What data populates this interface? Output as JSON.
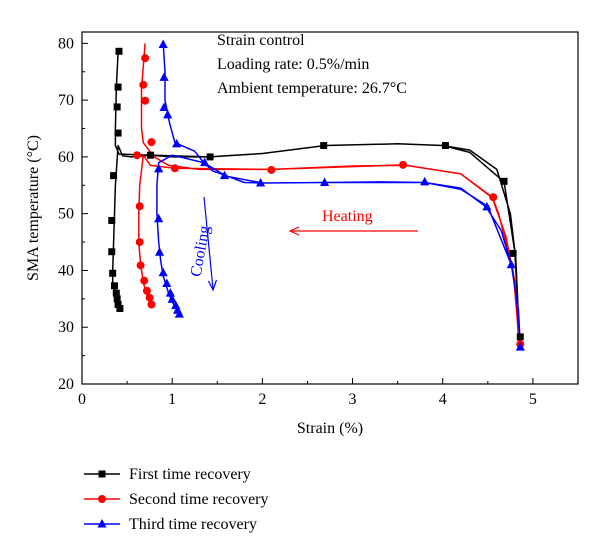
{
  "chart_data": {
    "type": "line",
    "xlabel": "Strain (%)",
    "ylabel": "SMA temperature (°C)",
    "xlim": [
      0,
      5.5
    ],
    "ylim": [
      20,
      82
    ],
    "xticks": [
      0,
      1,
      2,
      3,
      4,
      5
    ],
    "yticks": [
      20,
      30,
      40,
      50,
      60,
      70,
      80
    ],
    "grid": false,
    "legend_position": "bottom",
    "annotations": {
      "info_lines": [
        "Strain control",
        "Loading rate: 0.5%/min",
        "Ambient temperature: 26.7°C"
      ],
      "heating": "Heating",
      "cooling": "Cooling"
    },
    "series": [
      {
        "name": "First time recovery",
        "color": "#000000",
        "marker": "square",
        "line": [
          [
            0.4,
            78.5
          ],
          [
            0.38,
            72
          ],
          [
            0.37,
            65
          ],
          [
            0.37,
            62
          ],
          [
            0.41,
            60.5
          ],
          [
            0.8,
            60.3
          ],
          [
            1.4,
            60.0
          ],
          [
            2.0,
            60.6
          ],
          [
            2.7,
            62.0
          ],
          [
            3.5,
            62.3
          ],
          [
            4.0,
            62.0
          ],
          [
            4.3,
            61.2
          ],
          [
            4.6,
            57.8
          ],
          [
            4.75,
            50
          ],
          [
            4.81,
            42
          ],
          [
            4.85,
            28.2
          ],
          [
            4.8,
            43.2
          ],
          [
            4.68,
            55.6
          ],
          [
            4.3,
            60.8
          ],
          [
            4.0,
            62.0
          ],
          [
            3.5,
            62.3
          ],
          [
            2.7,
            62.0
          ],
          [
            2.0,
            60.6
          ],
          [
            1.42,
            60.0
          ],
          [
            1.0,
            60.0
          ],
          [
            0.76,
            60.3
          ],
          [
            0.55,
            60.0
          ],
          [
            0.45,
            60.2
          ],
          [
            0.4,
            62
          ],
          [
            0.37,
            55
          ],
          [
            0.35,
            45
          ],
          [
            0.34,
            40
          ],
          [
            0.34,
            38
          ],
          [
            0.36,
            36.5
          ],
          [
            0.37,
            35.5
          ],
          [
            0.39,
            34.5
          ],
          [
            0.41,
            33.3
          ]
        ],
        "markers": [
          [
            0.41,
            78.6
          ],
          [
            0.4,
            72.3
          ],
          [
            0.39,
            68.8
          ],
          [
            0.4,
            64.2
          ],
          [
            0.76,
            60.3
          ],
          [
            1.42,
            60.0
          ],
          [
            2.68,
            62.0
          ],
          [
            4.03,
            62.0
          ],
          [
            4.68,
            55.7
          ],
          [
            4.78,
            43.0
          ],
          [
            4.86,
            28.3
          ],
          [
            0.35,
            56.7
          ],
          [
            0.33,
            48.8
          ],
          [
            0.33,
            43.3
          ],
          [
            0.34,
            39.5
          ],
          [
            0.36,
            37.3
          ],
          [
            0.38,
            36.0
          ],
          [
            0.39,
            35.0
          ],
          [
            0.4,
            34.0
          ],
          [
            0.42,
            33.3
          ]
        ]
      },
      {
        "name": "Second time recovery",
        "color": "#ff0000",
        "marker": "circle",
        "line": [
          [
            0.7,
            80.0
          ],
          [
            0.66,
            72
          ],
          [
            0.66,
            65
          ],
          [
            0.68,
            62.5
          ],
          [
            0.8,
            60.0
          ],
          [
            0.96,
            58.5
          ],
          [
            1.3,
            57.8
          ],
          [
            2.1,
            57.8
          ],
          [
            3.0,
            58.4
          ],
          [
            3.6,
            58.5
          ],
          [
            4.2,
            57.0
          ],
          [
            4.55,
            52.8
          ],
          [
            4.7,
            46
          ],
          [
            4.8,
            38
          ],
          [
            4.84,
            28
          ],
          [
            4.85,
            27.0
          ],
          [
            4.78,
            40
          ],
          [
            4.62,
            50
          ],
          [
            4.55,
            52.9
          ],
          [
            4.2,
            57.0
          ],
          [
            3.56,
            58.6
          ],
          [
            2.1,
            57.8
          ],
          [
            1.03,
            58.0
          ],
          [
            0.76,
            58.5
          ],
          [
            0.68,
            60.3
          ],
          [
            0.64,
            55
          ],
          [
            0.63,
            50
          ],
          [
            0.63,
            45
          ],
          [
            0.65,
            41
          ],
          [
            0.68,
            38
          ],
          [
            0.71,
            36
          ],
          [
            0.74,
            35
          ],
          [
            0.77,
            34.0
          ]
        ],
        "markers": [
          [
            0.7,
            77.4
          ],
          [
            0.68,
            72.7
          ],
          [
            0.7,
            69.9
          ],
          [
            0.77,
            62.6
          ],
          [
            0.61,
            60.3
          ],
          [
            1.03,
            58.0
          ],
          [
            2.1,
            57.7
          ],
          [
            3.56,
            58.6
          ],
          [
            4.56,
            52.9
          ],
          [
            4.86,
            27.0
          ],
          [
            0.64,
            51.3
          ],
          [
            0.64,
            45.0
          ],
          [
            0.65,
            40.9
          ],
          [
            0.69,
            38.2
          ],
          [
            0.72,
            36.4
          ],
          [
            0.75,
            35.2
          ],
          [
            0.77,
            34.0
          ]
        ]
      },
      {
        "name": "Third time recovery",
        "color": "#0000ff",
        "marker": "triangle",
        "line": [
          [
            0.9,
            80.0
          ],
          [
            0.92,
            75
          ],
          [
            0.92,
            70
          ],
          [
            0.97,
            66
          ],
          [
            1.03,
            62.5
          ],
          [
            1.25,
            61
          ],
          [
            1.35,
            59.0
          ],
          [
            1.45,
            57.5
          ],
          [
            1.58,
            56.8
          ],
          [
            1.8,
            55.5
          ],
          [
            2.0,
            55.4
          ],
          [
            2.7,
            55.5
          ],
          [
            3.3,
            55.6
          ],
          [
            3.8,
            55.5
          ],
          [
            4.2,
            54.5
          ],
          [
            4.48,
            51.2
          ],
          [
            4.65,
            47
          ],
          [
            4.76,
            41.0
          ],
          [
            4.84,
            33
          ],
          [
            4.86,
            26.5
          ],
          [
            4.82,
            35
          ],
          [
            4.76,
            41.0
          ],
          [
            4.5,
            51.3
          ],
          [
            4.2,
            54.3
          ],
          [
            3.8,
            55.5
          ],
          [
            2.7,
            55.5
          ],
          [
            2.0,
            55.4
          ],
          [
            1.6,
            56.6
          ],
          [
            1.35,
            59.0
          ],
          [
            1.0,
            60.3
          ],
          [
            0.85,
            59
          ],
          [
            0.83,
            55
          ],
          [
            0.83,
            50
          ],
          [
            0.85,
            45
          ],
          [
            0.87,
            42
          ],
          [
            0.9,
            39
          ],
          [
            0.93,
            37.5
          ],
          [
            0.96,
            36.0
          ],
          [
            1.0,
            34.5
          ],
          [
            1.05,
            33.0
          ],
          [
            1.07,
            32.5
          ]
        ],
        "markers": [
          [
            0.9,
            79.8
          ],
          [
            0.91,
            74.0
          ],
          [
            0.91,
            68.7
          ],
          [
            0.95,
            67.4
          ],
          [
            1.05,
            62.3
          ],
          [
            1.36,
            59.0
          ],
          [
            1.58,
            56.7
          ],
          [
            1.98,
            55.4
          ],
          [
            2.69,
            55.5
          ],
          [
            3.8,
            55.6
          ],
          [
            4.49,
            51.2
          ],
          [
            4.76,
            41.0
          ],
          [
            4.86,
            26.5
          ],
          [
            0.85,
            57.9
          ],
          [
            0.85,
            49.1
          ],
          [
            0.86,
            43.2
          ],
          [
            0.9,
            39.6
          ],
          [
            0.94,
            37.7
          ],
          [
            0.98,
            36.0
          ],
          [
            1.0,
            34.9
          ],
          [
            1.04,
            33.8
          ],
          [
            1.06,
            33.0
          ],
          [
            1.08,
            32.3
          ]
        ]
      }
    ]
  }
}
